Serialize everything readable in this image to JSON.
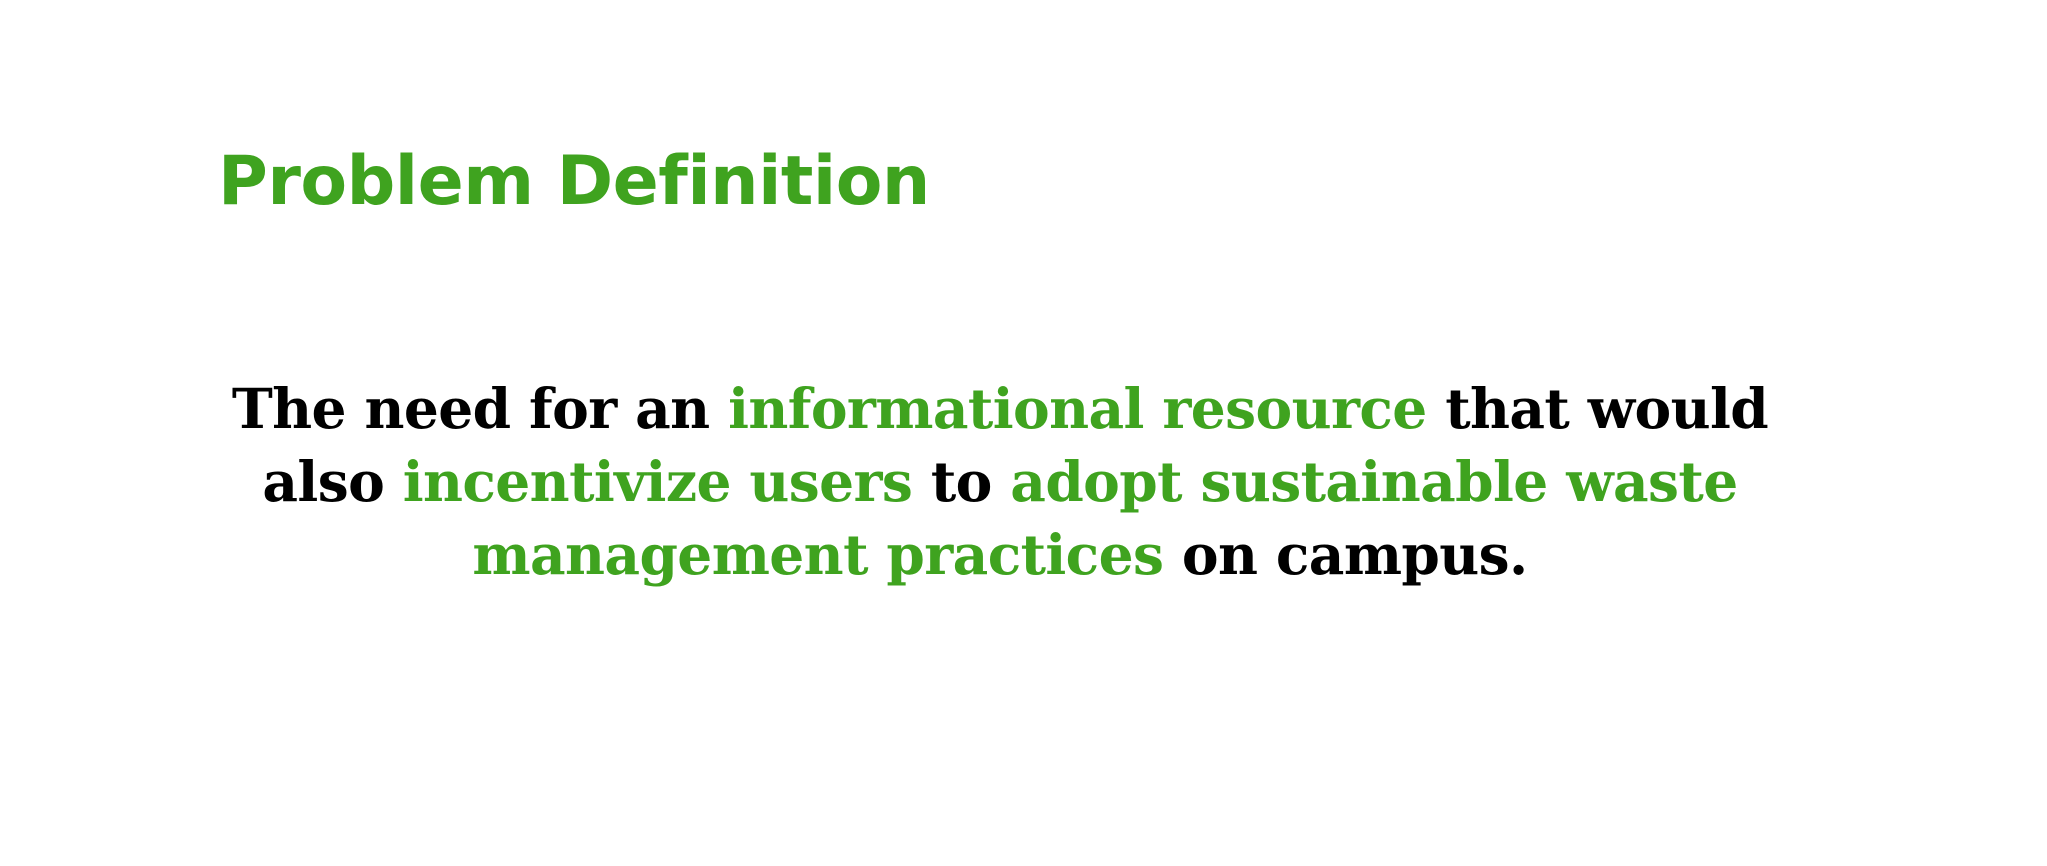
{
  "slide": {
    "title": "Problem Definition",
    "statement": [
      {
        "text": "The need for an ",
        "highlight": false
      },
      {
        "text": "informational resource",
        "highlight": true
      },
      {
        "text": " that would also ",
        "highlight": false
      },
      {
        "text": "incentivize users",
        "highlight": true
      },
      {
        "text": " to ",
        "highlight": false
      },
      {
        "text": "adopt sustainable waste management practices",
        "highlight": true
      },
      {
        "text": " on campus.",
        "highlight": false
      }
    ]
  },
  "colors": {
    "accent": "#3fa31f",
    "text": "#000000",
    "background": "#ffffff"
  }
}
